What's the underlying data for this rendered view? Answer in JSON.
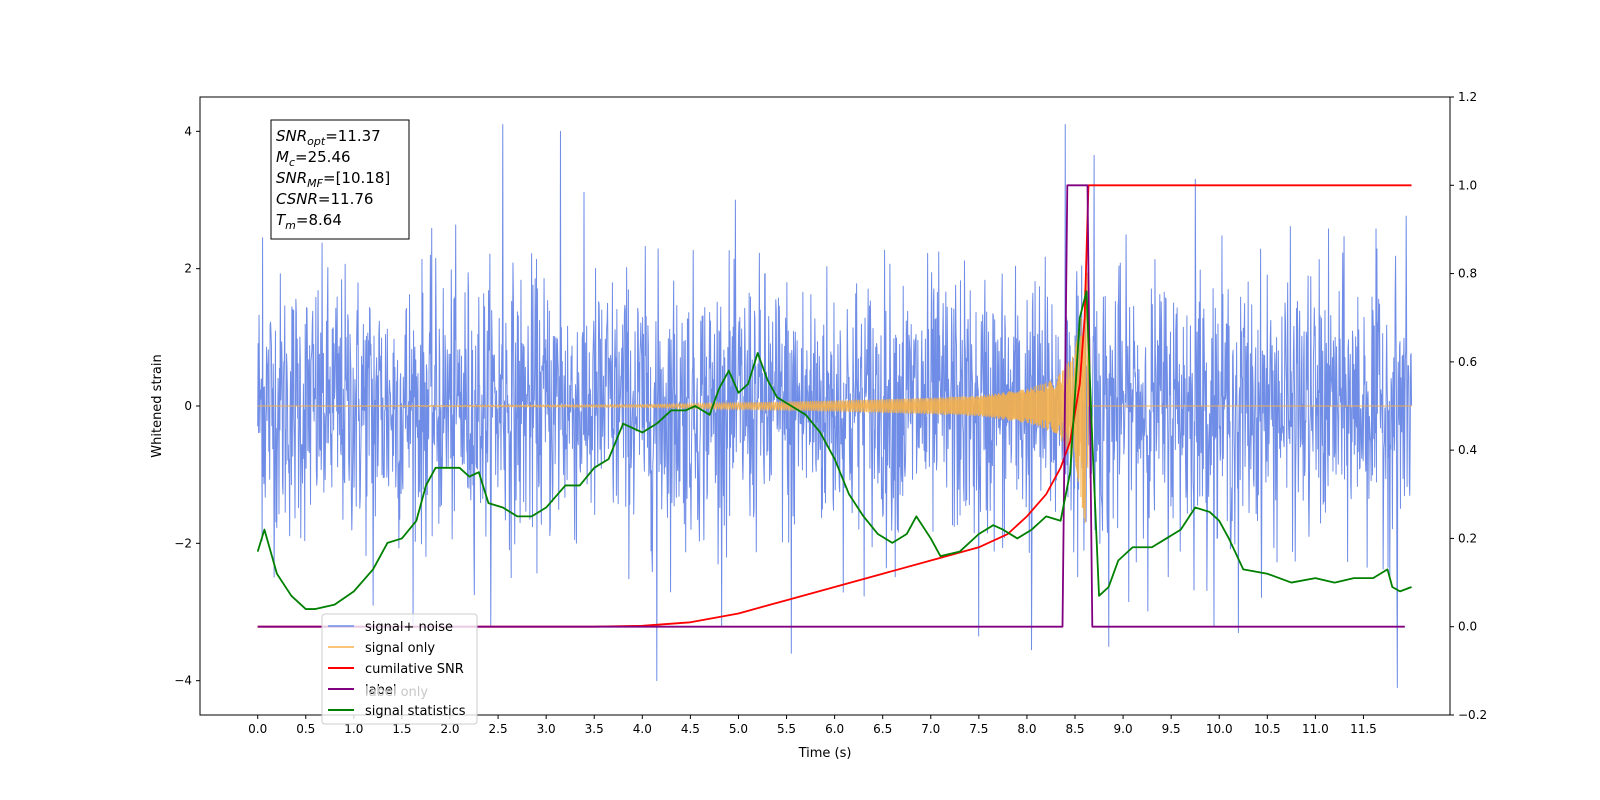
{
  "chart_data": {
    "type": "line",
    "xlabel": "Time (s)",
    "ylabel_left": "Whitened strain",
    "ylabel_right": "",
    "xlim": [
      -0.6,
      12.4
    ],
    "ylim_left": [
      -4.5,
      4.5
    ],
    "ylim_right": [
      -0.2,
      1.2
    ],
    "x_ticks": [
      0.0,
      0.5,
      1.0,
      1.5,
      2.0,
      2.5,
      3.0,
      3.5,
      4.0,
      4.5,
      5.0,
      5.5,
      6.0,
      6.5,
      7.0,
      7.5,
      8.0,
      8.5,
      9.0,
      9.5,
      10.0,
      10.5,
      11.0,
      11.5
    ],
    "y_ticks_left": [
      -4,
      -2,
      0,
      2,
      4
    ],
    "y_ticks_right": [
      -0.2,
      0.0,
      0.2,
      0.4,
      0.6,
      0.8,
      1.0,
      1.2
    ],
    "legend_position": "lower-left",
    "annotation_lines": [
      {
        "sym": "SNR",
        "sub": "opt",
        "val": "=11.37"
      },
      {
        "sym": "M",
        "sub": "c",
        "val": "=25.46"
      },
      {
        "sym": "SNR",
        "sub": "MF",
        "val": "=[10.18]"
      },
      {
        "sym": "CSNR",
        "sub": "",
        "val": "=11.76"
      },
      {
        "sym": "T",
        "sub": "m",
        "val": "=8.64"
      }
    ],
    "series": [
      {
        "name": "signal+ noise",
        "axis": "left",
        "color": "#6f8ce6",
        "kind": "noise",
        "x_range": [
          0,
          12
        ],
        "amplitude_std": 0.95,
        "spikes": [
          [
            0.05,
            2.45
          ],
          [
            1.2,
            -2.9
          ],
          [
            3.15,
            4.0
          ],
          [
            2.55,
            4.1
          ],
          [
            4.15,
            -4.0
          ],
          [
            5.55,
            -3.6
          ],
          [
            7.5,
            -3.35
          ],
          [
            8.05,
            -3.55
          ],
          [
            8.4,
            4.1
          ],
          [
            8.7,
            3.65
          ],
          [
            8.85,
            -3.5
          ],
          [
            9.75,
            3.3
          ],
          [
            10.2,
            -3.3
          ],
          [
            11.85,
            -4.1
          ]
        ]
      },
      {
        "name": "signal only",
        "axis": "left",
        "color": "#f5b04a",
        "kind": "chirp",
        "x_range": [
          0,
          12
        ],
        "merger_time": 8.64,
        "points": [
          [
            0.0,
            0.0
          ],
          [
            4.0,
            0.02
          ],
          [
            5.0,
            0.05
          ],
          [
            6.0,
            0.08
          ],
          [
            7.0,
            0.12
          ],
          [
            7.5,
            0.15
          ],
          [
            8.0,
            0.25
          ],
          [
            8.3,
            0.4
          ],
          [
            8.5,
            0.8
          ],
          [
            8.6,
            1.7
          ],
          [
            8.64,
            2.1
          ],
          [
            8.68,
            0.0
          ],
          [
            12.0,
            0.0
          ]
        ]
      },
      {
        "name": "cumilative SNR",
        "axis": "right",
        "color": "#ff0000",
        "points": [
          [
            0.0,
            0.0
          ],
          [
            3.5,
            0.0
          ],
          [
            4.0,
            0.002
          ],
          [
            4.5,
            0.01
          ],
          [
            5.0,
            0.03
          ],
          [
            5.5,
            0.06
          ],
          [
            6.0,
            0.09
          ],
          [
            6.5,
            0.12
          ],
          [
            7.0,
            0.15
          ],
          [
            7.5,
            0.18
          ],
          [
            7.8,
            0.21
          ],
          [
            8.0,
            0.25
          ],
          [
            8.2,
            0.3
          ],
          [
            8.35,
            0.36
          ],
          [
            8.45,
            0.42
          ],
          [
            8.55,
            0.55
          ],
          [
            8.6,
            0.7
          ],
          [
            8.64,
            1.0
          ],
          [
            12.0,
            1.0
          ]
        ]
      },
      {
        "name": "label",
        "axis": "right",
        "color": "#800080",
        "points": [
          [
            0.0,
            0.0
          ],
          [
            8.37,
            0.0
          ],
          [
            8.42,
            1.0
          ],
          [
            8.63,
            1.0
          ],
          [
            8.68,
            0.0
          ],
          [
            11.93,
            0.0
          ]
        ]
      },
      {
        "name": "label only",
        "axis": "right",
        "color": "#bbbbbb",
        "points": []
      },
      {
        "name": "signal statistics",
        "axis": "right",
        "color": "#008000",
        "points": [
          [
            0.0,
            0.17
          ],
          [
            0.07,
            0.22
          ],
          [
            0.2,
            0.12
          ],
          [
            0.35,
            0.07
          ],
          [
            0.5,
            0.04
          ],
          [
            0.6,
            0.04
          ],
          [
            0.8,
            0.05
          ],
          [
            1.0,
            0.08
          ],
          [
            1.2,
            0.13
          ],
          [
            1.35,
            0.19
          ],
          [
            1.5,
            0.2
          ],
          [
            1.65,
            0.24
          ],
          [
            1.75,
            0.32
          ],
          [
            1.85,
            0.36
          ],
          [
            2.0,
            0.36
          ],
          [
            2.1,
            0.36
          ],
          [
            2.2,
            0.34
          ],
          [
            2.3,
            0.35
          ],
          [
            2.4,
            0.28
          ],
          [
            2.55,
            0.27
          ],
          [
            2.7,
            0.25
          ],
          [
            2.85,
            0.25
          ],
          [
            3.0,
            0.27
          ],
          [
            3.2,
            0.32
          ],
          [
            3.35,
            0.32
          ],
          [
            3.5,
            0.36
          ],
          [
            3.65,
            0.38
          ],
          [
            3.8,
            0.46
          ],
          [
            3.9,
            0.45
          ],
          [
            4.0,
            0.44
          ],
          [
            4.15,
            0.46
          ],
          [
            4.3,
            0.49
          ],
          [
            4.45,
            0.49
          ],
          [
            4.55,
            0.5
          ],
          [
            4.7,
            0.48
          ],
          [
            4.8,
            0.54
          ],
          [
            4.9,
            0.58
          ],
          [
            5.0,
            0.53
          ],
          [
            5.1,
            0.55
          ],
          [
            5.2,
            0.62
          ],
          [
            5.3,
            0.56
          ],
          [
            5.4,
            0.52
          ],
          [
            5.55,
            0.5
          ],
          [
            5.7,
            0.48
          ],
          [
            5.85,
            0.44
          ],
          [
            6.0,
            0.38
          ],
          [
            6.15,
            0.3
          ],
          [
            6.3,
            0.25
          ],
          [
            6.45,
            0.21
          ],
          [
            6.6,
            0.19
          ],
          [
            6.75,
            0.21
          ],
          [
            6.85,
            0.25
          ],
          [
            7.0,
            0.2
          ],
          [
            7.1,
            0.16
          ],
          [
            7.3,
            0.17
          ],
          [
            7.5,
            0.21
          ],
          [
            7.65,
            0.23
          ],
          [
            7.75,
            0.22
          ],
          [
            7.9,
            0.2
          ],
          [
            8.05,
            0.22
          ],
          [
            8.2,
            0.25
          ],
          [
            8.35,
            0.24
          ],
          [
            8.45,
            0.35
          ],
          [
            8.55,
            0.7
          ],
          [
            8.62,
            0.76
          ],
          [
            8.68,
            0.42
          ],
          [
            8.75,
            0.07
          ],
          [
            8.85,
            0.09
          ],
          [
            8.95,
            0.15
          ],
          [
            9.1,
            0.18
          ],
          [
            9.3,
            0.18
          ],
          [
            9.45,
            0.2
          ],
          [
            9.6,
            0.22
          ],
          [
            9.75,
            0.27
          ],
          [
            9.9,
            0.26
          ],
          [
            10.0,
            0.24
          ],
          [
            10.1,
            0.2
          ],
          [
            10.25,
            0.13
          ],
          [
            10.5,
            0.12
          ],
          [
            10.75,
            0.1
          ],
          [
            11.0,
            0.11
          ],
          [
            11.2,
            0.1
          ],
          [
            11.4,
            0.11
          ],
          [
            11.6,
            0.11
          ],
          [
            11.75,
            0.13
          ],
          [
            11.8,
            0.09
          ],
          [
            11.88,
            0.08
          ],
          [
            12.0,
            0.09
          ]
        ]
      }
    ]
  }
}
